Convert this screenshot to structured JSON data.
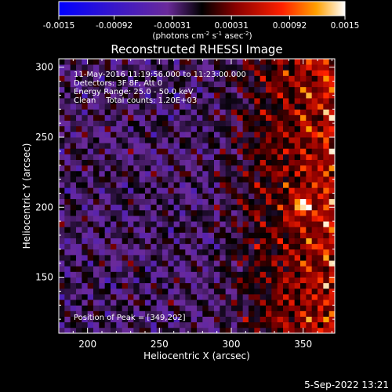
{
  "colorbar": {
    "ticks": [
      "-0.0015",
      "-0.00092",
      "-0.00031",
      "0.00031",
      "0.00092",
      "0.0015"
    ],
    "tick_values": [
      -0.0015,
      -0.00092,
      -0.00031,
      0.00031,
      0.00092,
      0.0015
    ],
    "units_prefix": "(photons cm",
    "units_exp1": "-2",
    "units_mid": " s",
    "units_exp2": "-1",
    "units_mid2": " asec",
    "units_exp3": "-2",
    "units_suffix": ")",
    "colors": [
      "#0000ff",
      "#3a18c8",
      "#6a2a9a",
      "#000000",
      "#8a0000",
      "#ff2000",
      "#ffa000",
      "#ffffff"
    ]
  },
  "chart_data": {
    "type": "heatmap",
    "title": "Reconstructed RHESSI Image",
    "xlabel": "Heliocentric X (arcsec)",
    "ylabel": "Heliocentric Y (arcsec)",
    "xlim": [
      180,
      372
    ],
    "ylim": [
      110,
      306
    ],
    "xticks": [
      200,
      250,
      300,
      350
    ],
    "yticks": [
      150,
      200,
      250,
      300
    ],
    "peak": {
      "x": 349,
      "y": 202
    },
    "annotations": {
      "line1": "11-May-2016 11:19:56.000 to 11:23:00.000",
      "line2": "Detectors: 3F 8F, Att 0",
      "line3": "Energy Range: 25.0 - 50.0 keV",
      "line4": "Clean    Total counts: 1.20E+03",
      "peak_text": "Position of Peak = [349,202]"
    }
  },
  "footer": {
    "timestamp": "5-Sep-2022 13:21"
  }
}
